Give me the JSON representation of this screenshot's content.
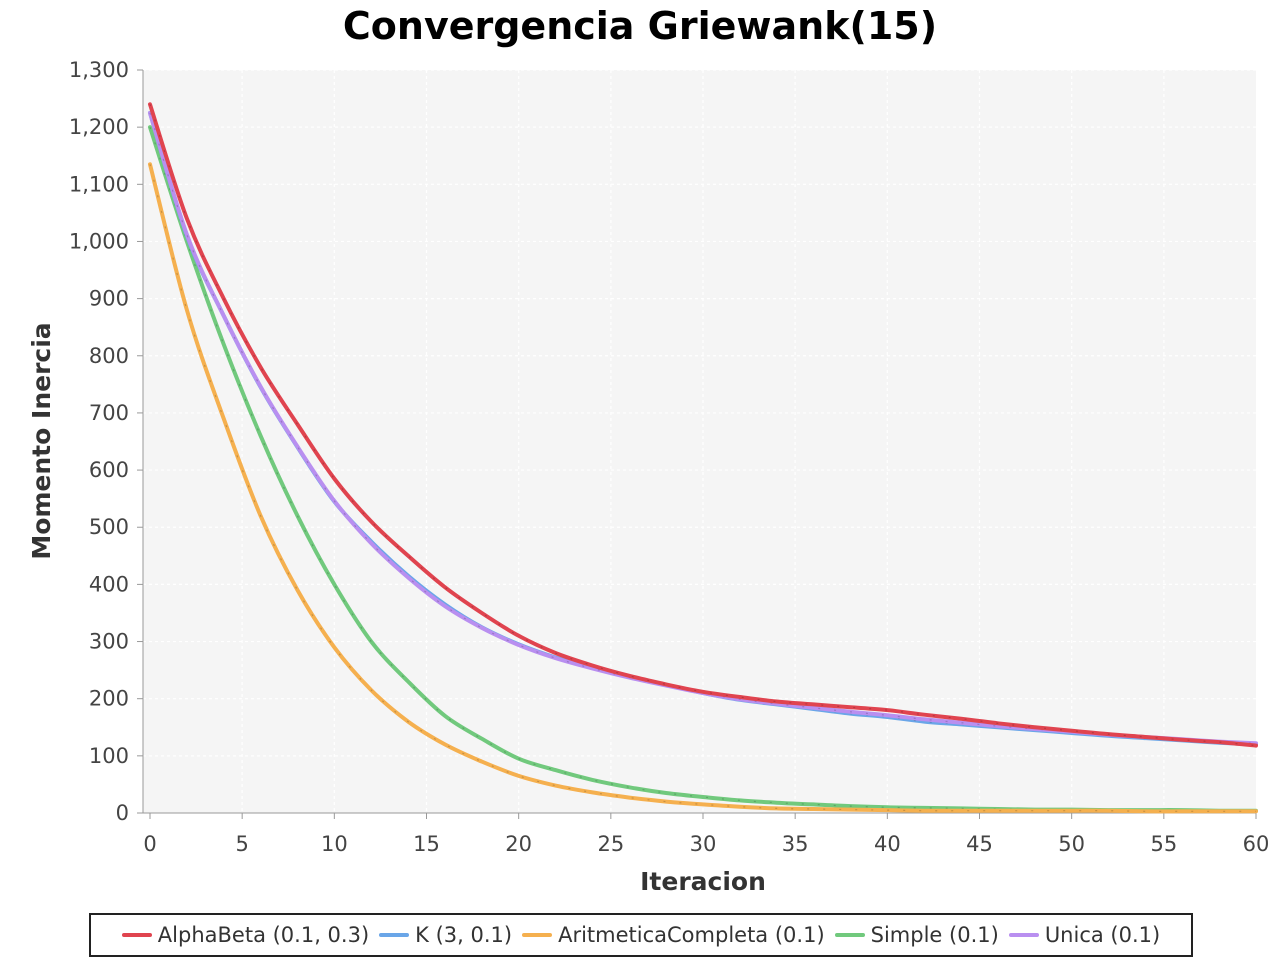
{
  "chart_data": {
    "type": "line",
    "title": "Convergencia Griewank(15)",
    "xlabel": "Iteracion",
    "ylabel": "Momento Inercia",
    "xlim": [
      0,
      60
    ],
    "ylim": [
      0,
      1300
    ],
    "x_ticks": [
      "0",
      "5",
      "10",
      "15",
      "20",
      "25",
      "30",
      "35",
      "40",
      "45",
      "50",
      "55",
      "60"
    ],
    "y_ticks": [
      "0",
      "100",
      "200",
      "300",
      "400",
      "500",
      "600",
      "700",
      "800",
      "900",
      "1,000",
      "1,100",
      "1,200",
      "1,300"
    ],
    "grid": true,
    "legend_position": "bottom",
    "x": [
      0,
      2,
      4,
      6,
      8,
      10,
      12,
      14,
      16,
      18,
      20,
      22,
      24,
      26,
      28,
      30,
      32,
      34,
      36,
      38,
      40,
      42,
      44,
      46,
      48,
      50,
      52,
      54,
      56,
      58,
      60
    ],
    "series": [
      {
        "name": "AlphaBeta (0.1, 0.3)",
        "color": "#e0444f",
        "values": [
          1240,
          1040,
          900,
          780,
          680,
          585,
          510,
          450,
          395,
          350,
          310,
          280,
          258,
          240,
          225,
          212,
          203,
          195,
          190,
          185,
          180,
          172,
          165,
          157,
          150,
          144,
          138,
          133,
          128,
          124,
          118
        ]
      },
      {
        "name": "K (3, 0.1)",
        "color": "#6aa6e8",
        "values": [
          1225,
          1010,
          870,
          745,
          640,
          545,
          475,
          415,
          365,
          325,
          295,
          272,
          254,
          238,
          224,
          210,
          198,
          190,
          182,
          174,
          168,
          160,
          155,
          150,
          145,
          140,
          135,
          131,
          127,
          123,
          120
        ]
      },
      {
        "name": "AritmeticaCompleta (0.1)",
        "color": "#f5b04f",
        "values": [
          1135,
          880,
          690,
          520,
          390,
          290,
          215,
          160,
          120,
          90,
          65,
          48,
          36,
          27,
          20,
          15,
          11,
          8,
          7,
          6,
          5,
          4,
          4,
          4,
          4,
          4,
          4,
          3,
          3,
          3,
          3
        ]
      },
      {
        "name": "Simple (0.1)",
        "color": "#71c97d",
        "values": [
          1200,
          1000,
          820,
          660,
          520,
          400,
          300,
          230,
          170,
          130,
          95,
          75,
          58,
          45,
          35,
          28,
          22,
          18,
          15,
          12,
          10,
          9,
          8,
          7,
          6,
          6,
          5,
          5,
          5,
          4,
          4
        ]
      },
      {
        "name": "Unica (0.1)",
        "color": "#b98ff0",
        "values": [
          1225,
          1012,
          870,
          746,
          641,
          546,
          472,
          412,
          362,
          324,
          294,
          271,
          253,
          237,
          223,
          210,
          199,
          191,
          184,
          177,
          171,
          164,
          158,
          152,
          147,
          142,
          137,
          133,
          129,
          125,
          122
        ]
      }
    ]
  }
}
